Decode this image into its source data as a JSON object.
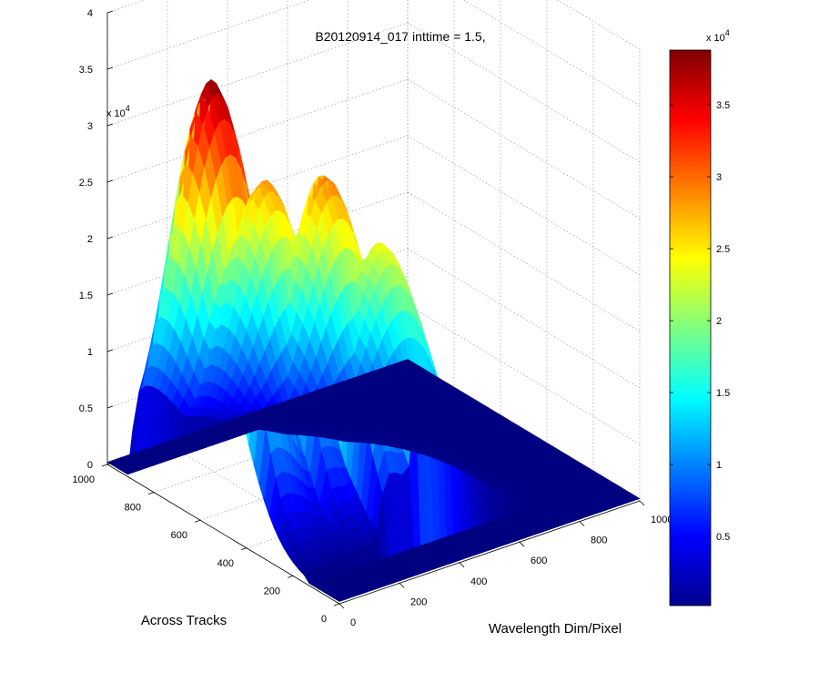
{
  "chart_data": {
    "type": "surface",
    "title": "B20120914_017 inttime = 1.5,",
    "xlabel": "Across Tracks",
    "ylabel": "Wavelength Dim/Pixel",
    "z_exponent_label": "x 10",
    "z_exponent": "4",
    "x_ticks": [
      "0",
      "200",
      "400",
      "600",
      "800",
      "1000"
    ],
    "y_ticks": [
      "0",
      "200",
      "400",
      "600",
      "800",
      "1000"
    ],
    "z_ticks": [
      "0",
      "0.5",
      "1",
      "1.5",
      "2",
      "2.5",
      "3",
      "3.5",
      "4"
    ],
    "xlim": [
      0,
      1000
    ],
    "ylim": [
      0,
      1000
    ],
    "zlim": [
      0,
      40000
    ],
    "grid": true,
    "colormap": "jet",
    "colorbar": {
      "position": "right",
      "exponent_label": "x 10",
      "exponent": "4",
      "range": [
        200,
        38800
      ],
      "ticks": [
        {
          "value": 5000,
          "label": "0.5"
        },
        {
          "value": 10000,
          "label": "1"
        },
        {
          "value": 15000,
          "label": "1.5"
        },
        {
          "value": 20000,
          "label": "2"
        },
        {
          "value": 25000,
          "label": "2.5"
        },
        {
          "value": 30000,
          "label": "3"
        },
        {
          "value": 35000,
          "label": "3.5"
        }
      ]
    },
    "peaks": [
      {
        "x": 600,
        "y": 30,
        "z": 38800
      },
      {
        "x": 560,
        "y": 180,
        "z": 29000
      },
      {
        "x": 430,
        "y": 280,
        "z": 30000
      },
      {
        "x": 320,
        "y": 380,
        "z": 24500
      }
    ],
    "baseline": 200
  }
}
